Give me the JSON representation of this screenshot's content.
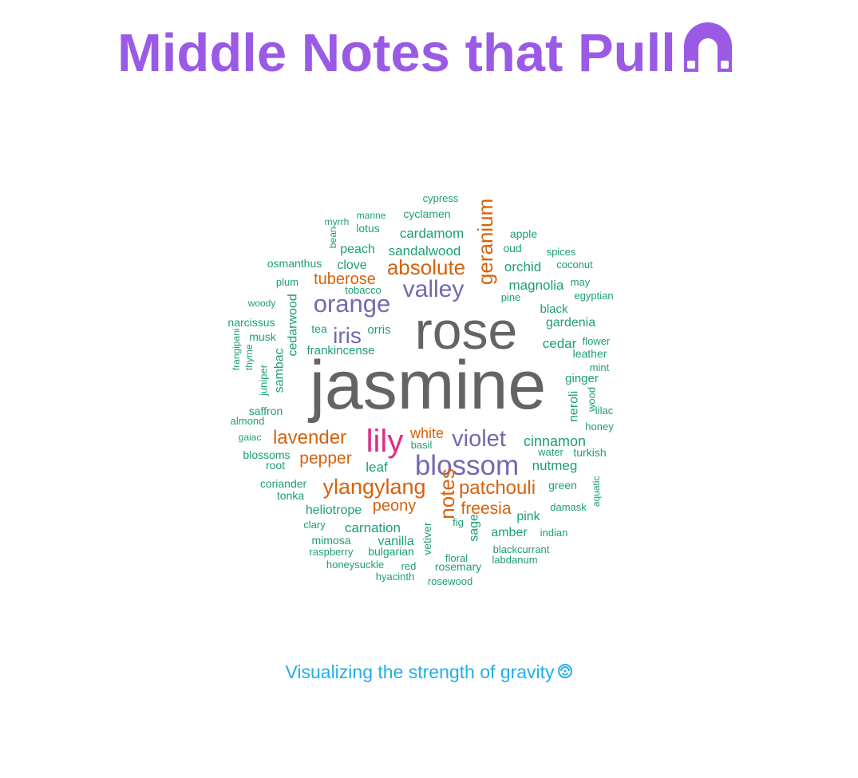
{
  "title": "Middle Notes that Pull",
  "title_icon": "magnet-icon",
  "subtitle": "Visualizing the strength of gravity",
  "subtitle_icon": "gravity-swirl-icon",
  "colors": {
    "title": "#9a5ae6",
    "subtitle": "#1fb0e8",
    "gray": "#646464",
    "pink": "#e02b8a",
    "purple": "#7568b0",
    "orange": "#d6620c",
    "green": "#1b9e77"
  },
  "words": [
    {
      "text": "jasmine",
      "color": "gray"
    },
    {
      "text": "rose",
      "color": "gray"
    },
    {
      "text": "lily",
      "color": "pink"
    },
    {
      "text": "blossom",
      "color": "purple"
    },
    {
      "text": "valley",
      "color": "purple"
    },
    {
      "text": "orange",
      "color": "purple"
    },
    {
      "text": "violet",
      "color": "purple"
    },
    {
      "text": "iris",
      "color": "purple"
    },
    {
      "text": "geranium",
      "color": "orange"
    },
    {
      "text": "absolute",
      "color": "orange"
    },
    {
      "text": "ylangylang",
      "color": "orange"
    },
    {
      "text": "patchouli",
      "color": "orange"
    },
    {
      "text": "notes",
      "color": "orange"
    },
    {
      "text": "lavender",
      "color": "orange"
    },
    {
      "text": "tuberose",
      "color": "orange"
    },
    {
      "text": "pepper",
      "color": "orange"
    },
    {
      "text": "freesia",
      "color": "orange"
    },
    {
      "text": "peony",
      "color": "orange"
    },
    {
      "text": "white",
      "color": "orange"
    },
    {
      "text": "cinnamon",
      "color": "green"
    },
    {
      "text": "cardamom",
      "color": "green"
    },
    {
      "text": "sandalwood",
      "color": "green"
    },
    {
      "text": "magnolia",
      "color": "green"
    },
    {
      "text": "orchid",
      "color": "green"
    },
    {
      "text": "gardenia",
      "color": "green"
    },
    {
      "text": "cedar",
      "color": "green"
    },
    {
      "text": "nutmeg",
      "color": "green"
    },
    {
      "text": "carnation",
      "color": "green"
    },
    {
      "text": "heliotrope",
      "color": "green"
    },
    {
      "text": "frankincense",
      "color": "green"
    },
    {
      "text": "cedarwood",
      "color": "green"
    },
    {
      "text": "sambac",
      "color": "green"
    },
    {
      "text": "clove",
      "color": "green"
    },
    {
      "text": "peach",
      "color": "green"
    },
    {
      "text": "cyclamen",
      "color": "green"
    },
    {
      "text": "leaf",
      "color": "green"
    },
    {
      "text": "vanilla",
      "color": "green"
    },
    {
      "text": "amber",
      "color": "green"
    },
    {
      "text": "ginger",
      "color": "green"
    },
    {
      "text": "neroli",
      "color": "green"
    },
    {
      "text": "black",
      "color": "green"
    },
    {
      "text": "sage",
      "color": "green"
    },
    {
      "text": "vetiver",
      "color": "green"
    },
    {
      "text": "pink",
      "color": "green"
    },
    {
      "text": "orris",
      "color": "green"
    },
    {
      "text": "saffron",
      "color": "green"
    },
    {
      "text": "bulgarian",
      "color": "green"
    },
    {
      "text": "musk",
      "color": "green"
    },
    {
      "text": "narcissus",
      "color": "green"
    },
    {
      "text": "tea",
      "color": "green"
    },
    {
      "text": "coriander",
      "color": "green"
    },
    {
      "text": "blossoms",
      "color": "green"
    },
    {
      "text": "green",
      "color": "green"
    },
    {
      "text": "osmanthus",
      "color": "green"
    },
    {
      "text": "rosemary",
      "color": "green"
    },
    {
      "text": "leather",
      "color": "green"
    },
    {
      "text": "oud",
      "color": "green"
    },
    {
      "text": "apple",
      "color": "green"
    },
    {
      "text": "lotus",
      "color": "green"
    },
    {
      "text": "mimosa",
      "color": "green"
    },
    {
      "text": "tonka",
      "color": "green"
    },
    {
      "text": "root",
      "color": "green"
    },
    {
      "text": "turkish",
      "color": "green"
    },
    {
      "text": "honeysuckle",
      "color": "green"
    },
    {
      "text": "blackcurrant",
      "color": "green"
    },
    {
      "text": "labdanum",
      "color": "green"
    },
    {
      "text": "hyacinth",
      "color": "green"
    },
    {
      "text": "clary",
      "color": "green"
    },
    {
      "text": "damask",
      "color": "green"
    },
    {
      "text": "water",
      "color": "green"
    },
    {
      "text": "egyptian",
      "color": "green"
    },
    {
      "text": "coconut",
      "color": "green"
    },
    {
      "text": "spices",
      "color": "green"
    },
    {
      "text": "wood",
      "color": "green"
    },
    {
      "text": "raspberry",
      "color": "green"
    },
    {
      "text": "floral",
      "color": "green"
    },
    {
      "text": "rosewood",
      "color": "green"
    },
    {
      "text": "red",
      "color": "green"
    },
    {
      "text": "indian",
      "color": "green"
    },
    {
      "text": "honey",
      "color": "green"
    },
    {
      "text": "lilac",
      "color": "green"
    },
    {
      "text": "mint",
      "color": "green"
    },
    {
      "text": "flower",
      "color": "green"
    },
    {
      "text": "may",
      "color": "green"
    },
    {
      "text": "pine",
      "color": "green"
    },
    {
      "text": "tobacco",
      "color": "green"
    },
    {
      "text": "basil",
      "color": "green"
    },
    {
      "text": "fig",
      "color": "green"
    },
    {
      "text": "plum",
      "color": "green"
    },
    {
      "text": "woody",
      "color": "green"
    },
    {
      "text": "almond",
      "color": "green"
    },
    {
      "text": "gaiac",
      "color": "green"
    },
    {
      "text": "juniper",
      "color": "green"
    },
    {
      "text": "thyme",
      "color": "green"
    },
    {
      "text": "frangipani",
      "color": "green"
    },
    {
      "text": "bean",
      "color": "green"
    },
    {
      "text": "myrrh",
      "color": "green"
    },
    {
      "text": "marine",
      "color": "green"
    },
    {
      "text": "cypress",
      "color": "green"
    },
    {
      "text": "aquatic",
      "color": "green"
    }
  ]
}
